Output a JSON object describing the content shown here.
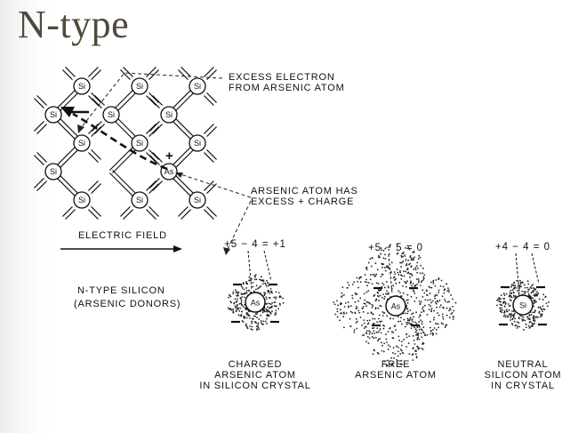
{
  "title": "N-type",
  "lattice": {
    "atoms": [
      {
        "label": "Si"
      },
      {
        "label": "Si"
      },
      {
        "label": "Si"
      },
      {
        "label": "Si"
      },
      {
        "label": "Si"
      },
      {
        "label": "Si"
      },
      {
        "label": "Si"
      },
      {
        "label": "Si"
      },
      {
        "label": "Si"
      },
      {
        "label": "Si"
      },
      {
        "label": "As"
      },
      {
        "label": "Si"
      },
      {
        "label": "Si"
      },
      {
        "label": "Si"
      }
    ],
    "plus_sign": "+",
    "callout_electron": [
      "EXCESS ELECTRON",
      "FROM ARSENIC ATOM"
    ],
    "callout_charge": [
      "ARSENIC ATOM HAS",
      "EXCESS + CHARGE"
    ],
    "field_label": "ELECTRIC FIELD"
  },
  "side_label": [
    "N-TYPE SILICON",
    "(ARSENIC DONORS)"
  ],
  "panels": [
    {
      "equation": "+5 − 4 = +1",
      "atom": "As",
      "caption": [
        "CHARGED",
        "ARSENIC ATOM",
        "IN SILICON CRYSTAL"
      ]
    },
    {
      "equation": "+5 − 5 = 0",
      "atom": "As",
      "caption": [
        "FREE",
        "ARSENIC ATOM"
      ]
    },
    {
      "equation": "+4 − 4 = 0",
      "atom": "Si",
      "caption": [
        "NEUTRAL",
        "SILICON ATOM",
        "IN CRYSTAL"
      ]
    }
  ]
}
